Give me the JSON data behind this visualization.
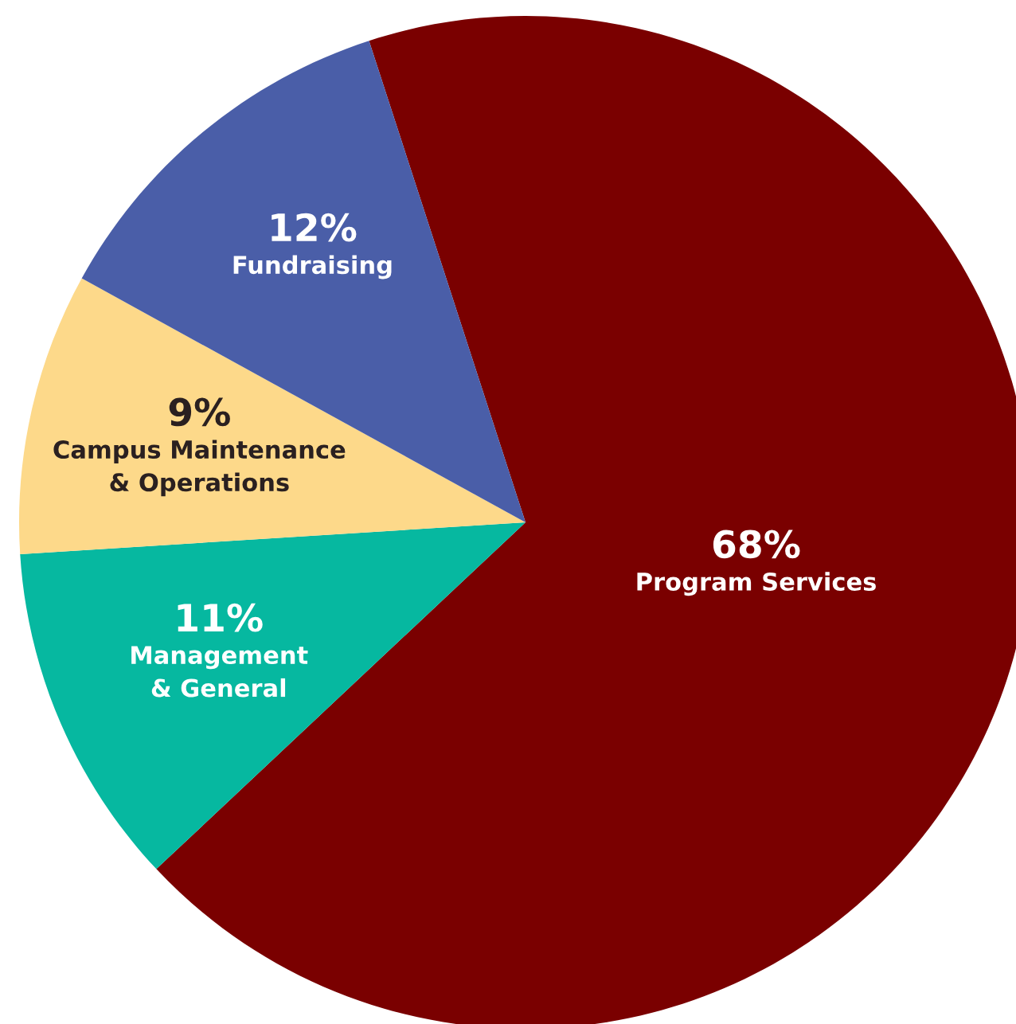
{
  "chart_data": {
    "type": "pie",
    "categories": [
      "Program Services",
      "Management\n& General",
      "Campus Maintenance\n& Operations",
      "Fundraising"
    ],
    "values": [
      68,
      11,
      9,
      12
    ],
    "value_labels": [
      "68%",
      "11%",
      "9%",
      "12%"
    ],
    "colors": [
      "#7a0000",
      "#06b8a0",
      "#fdd98a",
      "#4a5ea8"
    ],
    "legend": false
  }
}
